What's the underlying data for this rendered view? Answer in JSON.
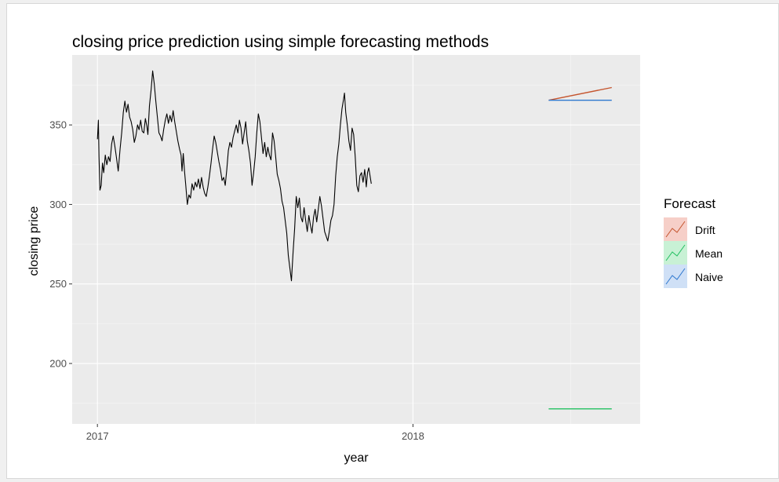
{
  "chart_data": {
    "type": "line",
    "title": "closing price prediction using simple forecasting methods",
    "xlabel": "year",
    "ylabel": "closing price",
    "x_ticks": [
      "2017",
      "2018"
    ],
    "y_ticks": [
      200,
      250,
      300,
      350
    ],
    "xlim": [
      2016.92,
      2018.72
    ],
    "ylim": [
      162,
      394
    ],
    "grid": true,
    "legend": {
      "title": "Forecast",
      "placement": "right",
      "entries": [
        {
          "name": "Drift",
          "color": "#c5552e"
        },
        {
          "name": "Mean",
          "color": "#22c060"
        },
        {
          "name": "Naive",
          "color": "#2e78cf"
        }
      ]
    },
    "series": [
      {
        "kind": "history",
        "color": "#000000",
        "points": [
          [
            2017.0,
            341
          ],
          [
            2017.003,
            353
          ],
          [
            2017.005,
            330
          ],
          [
            2017.008,
            309
          ],
          [
            2017.012,
            312
          ],
          [
            2017.016,
            326
          ],
          [
            2017.02,
            320
          ],
          [
            2017.025,
            331
          ],
          [
            2017.03,
            325
          ],
          [
            2017.035,
            330
          ],
          [
            2017.04,
            327
          ],
          [
            2017.045,
            338
          ],
          [
            2017.05,
            343
          ],
          [
            2017.055,
            337
          ],
          [
            2017.06,
            330
          ],
          [
            2017.066,
            321
          ],
          [
            2017.072,
            335
          ],
          [
            2017.077,
            345
          ],
          [
            2017.082,
            358
          ],
          [
            2017.087,
            365
          ],
          [
            2017.092,
            358
          ],
          [
            2017.097,
            363
          ],
          [
            2017.102,
            355
          ],
          [
            2017.107,
            352
          ],
          [
            2017.112,
            347
          ],
          [
            2017.117,
            339
          ],
          [
            2017.122,
            343
          ],
          [
            2017.127,
            350
          ],
          [
            2017.132,
            347
          ],
          [
            2017.137,
            353
          ],
          [
            2017.142,
            346
          ],
          [
            2017.147,
            345
          ],
          [
            2017.152,
            354
          ],
          [
            2017.157,
            349
          ],
          [
            2017.16,
            344
          ],
          [
            2017.165,
            362
          ],
          [
            2017.17,
            372
          ],
          [
            2017.175,
            384
          ],
          [
            2017.18,
            376
          ],
          [
            2017.185,
            365
          ],
          [
            2017.19,
            355
          ],
          [
            2017.195,
            345
          ],
          [
            2017.2,
            343
          ],
          [
            2017.205,
            340
          ],
          [
            2017.21,
            347
          ],
          [
            2017.215,
            353
          ],
          [
            2017.22,
            357
          ],
          [
            2017.225,
            351
          ],
          [
            2017.23,
            356
          ],
          [
            2017.235,
            352
          ],
          [
            2017.24,
            359
          ],
          [
            2017.245,
            352
          ],
          [
            2017.25,
            346
          ],
          [
            2017.255,
            340
          ],
          [
            2017.26,
            335
          ],
          [
            2017.265,
            331
          ],
          [
            2017.268,
            321
          ],
          [
            2017.272,
            332
          ],
          [
            2017.276,
            321
          ],
          [
            2017.28,
            312
          ],
          [
            2017.285,
            300
          ],
          [
            2017.29,
            306
          ],
          [
            2017.295,
            304
          ],
          [
            2017.3,
            313
          ],
          [
            2017.305,
            309
          ],
          [
            2017.31,
            314
          ],
          [
            2017.315,
            311
          ],
          [
            2017.32,
            316
          ],
          [
            2017.325,
            310
          ],
          [
            2017.33,
            317
          ],
          [
            2017.335,
            311
          ],
          [
            2017.34,
            307
          ],
          [
            2017.345,
            305
          ],
          [
            2017.35,
            311
          ],
          [
            2017.355,
            318
          ],
          [
            2017.36,
            326
          ],
          [
            2017.365,
            335
          ],
          [
            2017.37,
            343
          ],
          [
            2017.375,
            339
          ],
          [
            2017.38,
            333
          ],
          [
            2017.385,
            327
          ],
          [
            2017.39,
            322
          ],
          [
            2017.395,
            315
          ],
          [
            2017.4,
            317
          ],
          [
            2017.405,
            312
          ],
          [
            2017.41,
            322
          ],
          [
            2017.415,
            334
          ],
          [
            2017.42,
            339
          ],
          [
            2017.425,
            336
          ],
          [
            2017.43,
            342
          ],
          [
            2017.435,
            346
          ],
          [
            2017.44,
            350
          ],
          [
            2017.445,
            345
          ],
          [
            2017.45,
            353
          ],
          [
            2017.455,
            348
          ],
          [
            2017.46,
            338
          ],
          [
            2017.465,
            345
          ],
          [
            2017.47,
            352
          ],
          [
            2017.475,
            340
          ],
          [
            2017.48,
            334
          ],
          [
            2017.485,
            326
          ],
          [
            2017.49,
            312
          ],
          [
            2017.495,
            320
          ],
          [
            2017.5,
            330
          ],
          [
            2017.505,
            345
          ],
          [
            2017.51,
            357
          ],
          [
            2017.515,
            352
          ],
          [
            2017.52,
            342
          ],
          [
            2017.525,
            332
          ],
          [
            2017.53,
            339
          ],
          [
            2017.535,
            330
          ],
          [
            2017.54,
            336
          ],
          [
            2017.545,
            331
          ],
          [
            2017.55,
            328
          ],
          [
            2017.555,
            345
          ],
          [
            2017.56,
            340
          ],
          [
            2017.565,
            330
          ],
          [
            2017.57,
            319
          ],
          [
            2017.575,
            315
          ],
          [
            2017.58,
            310
          ],
          [
            2017.585,
            302
          ],
          [
            2017.59,
            298
          ],
          [
            2017.595,
            290
          ],
          [
            2017.6,
            282
          ],
          [
            2017.605,
            268
          ],
          [
            2017.61,
            260
          ],
          [
            2017.615,
            252
          ],
          [
            2017.62,
            270
          ],
          [
            2017.625,
            285
          ],
          [
            2017.63,
            305
          ],
          [
            2017.635,
            298
          ],
          [
            2017.64,
            304
          ],
          [
            2017.645,
            292
          ],
          [
            2017.65,
            289
          ],
          [
            2017.655,
            298
          ],
          [
            2017.66,
            290
          ],
          [
            2017.665,
            283
          ],
          [
            2017.67,
            293
          ],
          [
            2017.675,
            287
          ],
          [
            2017.68,
            282
          ],
          [
            2017.685,
            292
          ],
          [
            2017.69,
            297
          ],
          [
            2017.695,
            289
          ],
          [
            2017.7,
            297
          ],
          [
            2017.705,
            305
          ],
          [
            2017.71,
            299
          ],
          [
            2017.715,
            291
          ],
          [
            2017.72,
            283
          ],
          [
            2017.725,
            280
          ],
          [
            2017.73,
            277
          ],
          [
            2017.735,
            283
          ],
          [
            2017.74,
            290
          ],
          [
            2017.745,
            293
          ],
          [
            2017.75,
            300
          ],
          [
            2017.755,
            318
          ],
          [
            2017.76,
            330
          ],
          [
            2017.765,
            338
          ],
          [
            2017.77,
            350
          ],
          [
            2017.775,
            360
          ],
          [
            2017.78,
            366
          ],
          [
            2017.783,
            370
          ],
          [
            2017.787,
            358
          ],
          [
            2017.792,
            350
          ],
          [
            2017.797,
            340
          ],
          [
            2017.802,
            334
          ],
          [
            2017.807,
            348
          ],
          [
            2017.812,
            344
          ],
          [
            2017.817,
            330
          ],
          [
            2017.822,
            312
          ],
          [
            2017.827,
            308
          ],
          [
            2017.832,
            318
          ],
          [
            2017.837,
            320
          ],
          [
            2017.842,
            314
          ],
          [
            2017.847,
            322
          ],
          [
            2017.852,
            311
          ],
          [
            2017.856,
            320
          ],
          [
            2017.86,
            323
          ],
          [
            2017.864,
            318
          ],
          [
            2017.868,
            313
          ]
        ]
      },
      {
        "name": "Drift",
        "kind": "forecast",
        "color": "#c5552e",
        "points": [
          [
            2018.43,
            365.5
          ],
          [
            2018.63,
            373.5
          ]
        ]
      },
      {
        "name": "Mean",
        "kind": "forecast",
        "color": "#22c060",
        "points": [
          [
            2018.43,
            171.5
          ],
          [
            2018.63,
            171.5
          ]
        ]
      },
      {
        "name": "Naive",
        "kind": "forecast",
        "color": "#2e78cf",
        "points": [
          [
            2018.43,
            365.5
          ],
          [
            2018.63,
            365.5
          ]
        ]
      }
    ]
  }
}
